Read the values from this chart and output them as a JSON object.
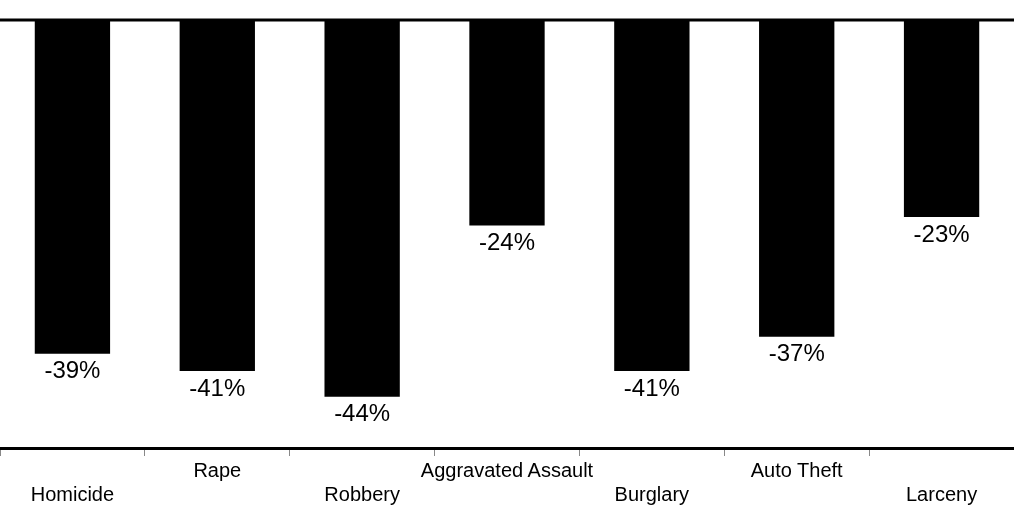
{
  "chart_data": {
    "type": "bar",
    "categories": [
      "Homicide",
      "Rape",
      "Robbery",
      "Aggravated Assault",
      "Burglary",
      "Auto Theft",
      "Larceny"
    ],
    "values": [
      -39,
      -41,
      -44,
      -24,
      -41,
      -37,
      -23
    ],
    "value_labels": [
      "-39%",
      "-41%",
      "-44%",
      "-24%",
      "-41%",
      "-37%",
      "-23%"
    ],
    "color": "#000000",
    "ylim": [
      -50,
      0
    ],
    "grid": false,
    "legend": false,
    "tick_labels": "x"
  }
}
